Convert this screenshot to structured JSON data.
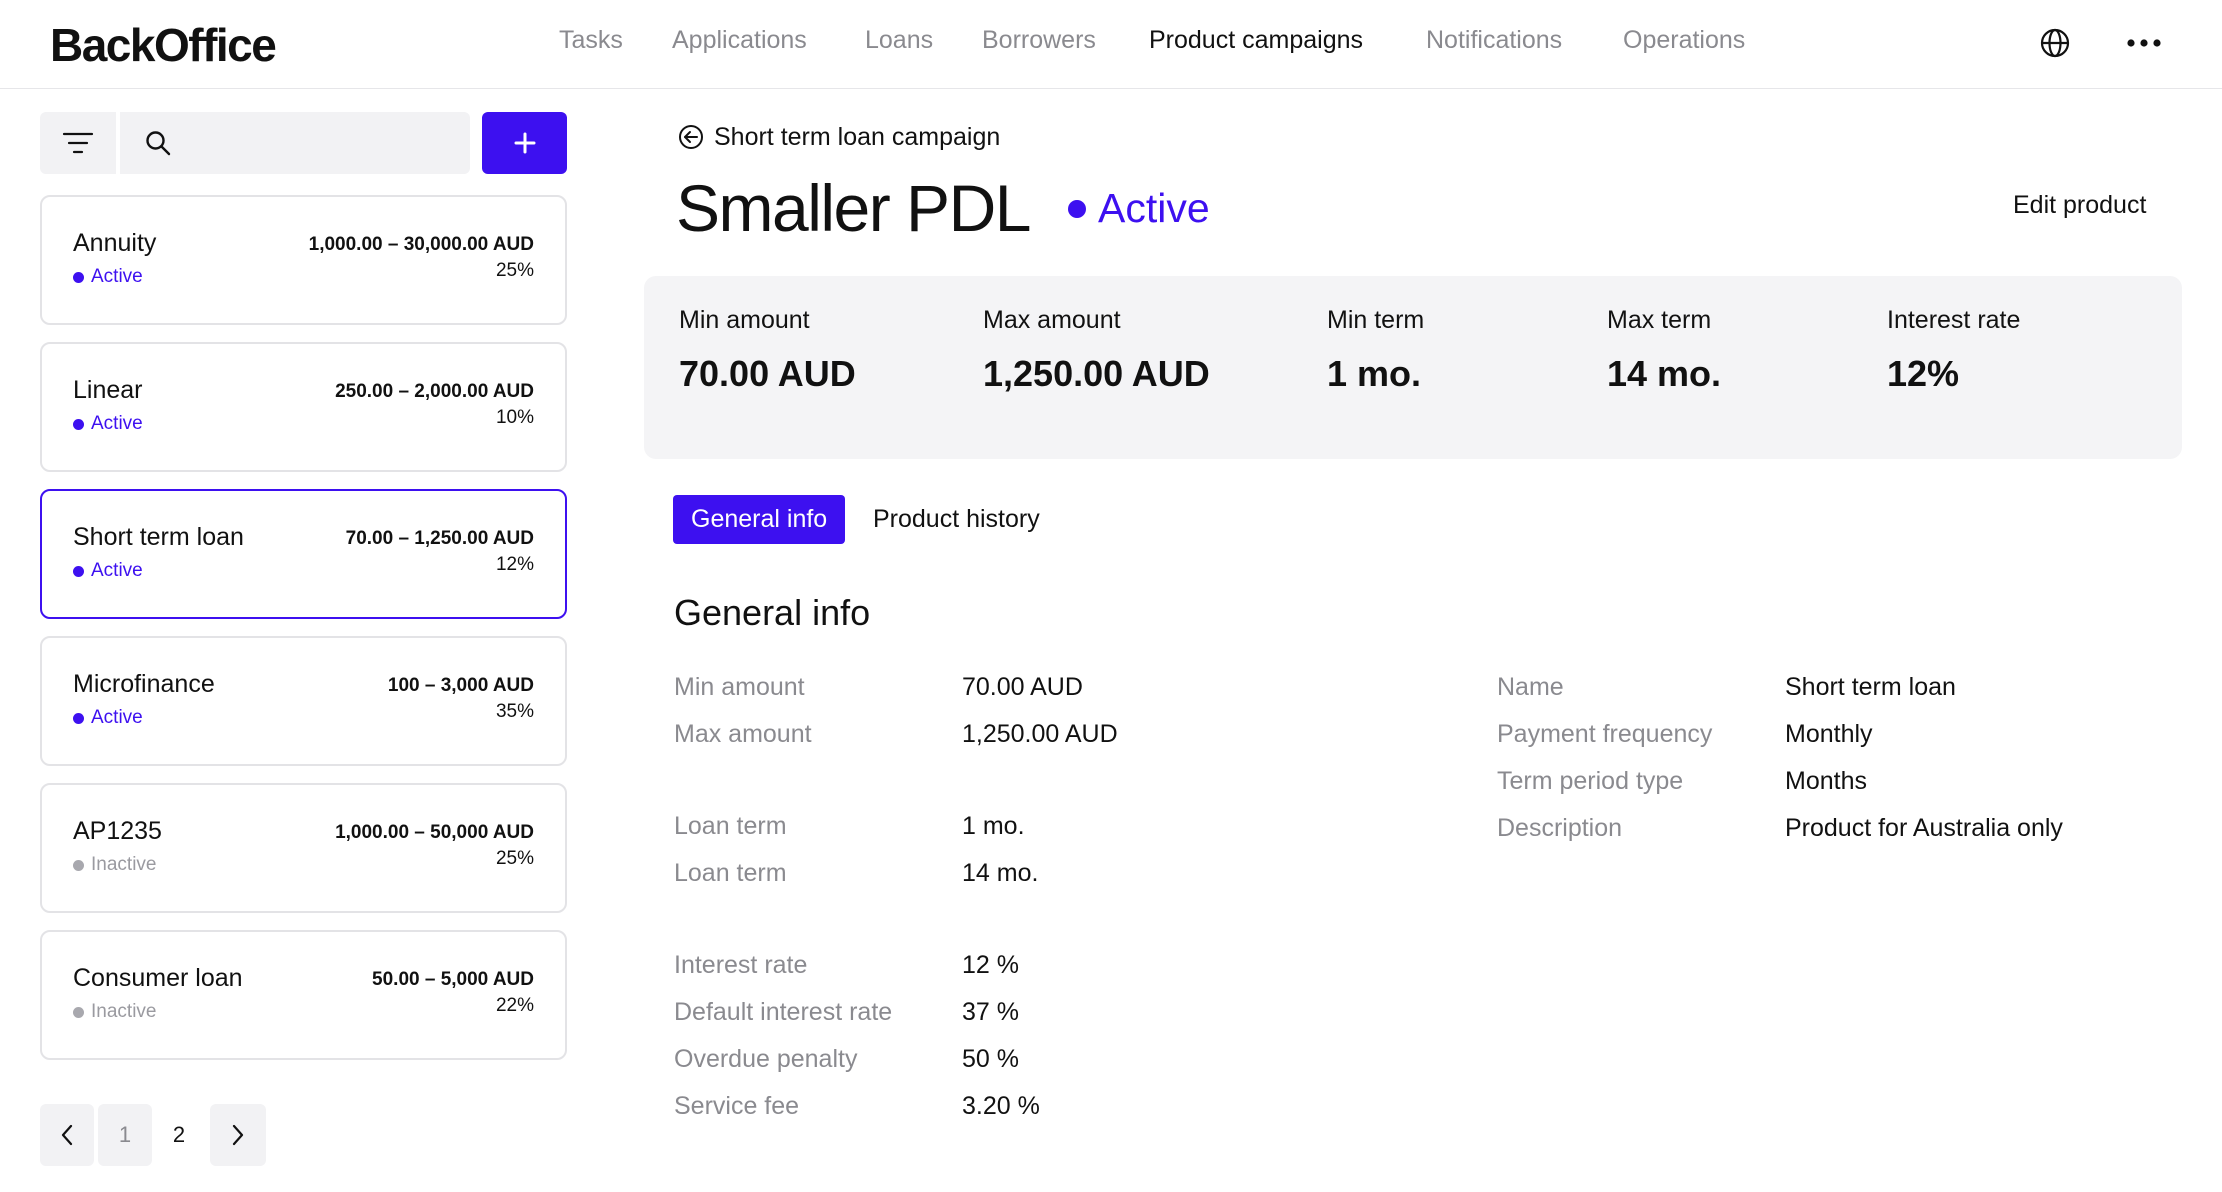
{
  "app": {
    "logo": "BackOffice"
  },
  "nav": {
    "items": [
      {
        "label": "Tasks"
      },
      {
        "label": "Applications"
      },
      {
        "label": "Loans"
      },
      {
        "label": "Borrowers"
      },
      {
        "label": "Product campaigns",
        "active": true
      },
      {
        "label": "Notifications"
      },
      {
        "label": "Operations"
      }
    ],
    "icons": [
      "globe-icon",
      "more-icon"
    ]
  },
  "sidebar": {
    "search": {
      "value": "",
      "placeholder": ""
    },
    "add_label": "+",
    "products": [
      {
        "name": "Annuity",
        "status": "Active",
        "range": "1,000.00 – 30,000.00 AUD",
        "rate": "25%"
      },
      {
        "name": "Linear",
        "status": "Active",
        "range": "250.00 – 2,000.00 AUD",
        "rate": "10%"
      },
      {
        "name": "Short term loan",
        "status": "Active",
        "range": "70.00 – 1,250.00 AUD",
        "rate": "12%",
        "selected": true
      },
      {
        "name": "Microfinance",
        "status": "Active",
        "range": "100 – 3,000 AUD",
        "rate": "35%"
      },
      {
        "name": "AP1235",
        "status": "Inactive",
        "range": "1,000.00 – 50,000 AUD",
        "rate": "25%"
      },
      {
        "name": "Consumer loan",
        "status": "Inactive",
        "range": "50.00 – 5,000 AUD",
        "rate": "22%"
      }
    ],
    "pagination": {
      "pages": [
        "1",
        "2"
      ],
      "current": "2"
    }
  },
  "colors": {
    "accent": "#3d10f0",
    "muted": "#8a8a8f",
    "panel": "#f4f4f6"
  },
  "main": {
    "back_label": "Short term loan campaign",
    "title": "Smaller PDL",
    "status": "Active",
    "edit_label": "Edit product",
    "stats": [
      {
        "label": "Min amount",
        "value": "70.00 AUD"
      },
      {
        "label": "Max amount",
        "value": "1,250.00 AUD"
      },
      {
        "label": "Min term",
        "value": "1 mo."
      },
      {
        "label": "Max term",
        "value": "14 mo."
      },
      {
        "label": "Interest rate",
        "value": "12%"
      }
    ],
    "tabs": [
      {
        "label": "General info",
        "active": true
      },
      {
        "label": "Product history"
      }
    ],
    "section_title": "General info",
    "left_info": [
      {
        "label": "Min amount",
        "value": "70.00 AUD"
      },
      {
        "label": "Max amount",
        "value": "1,250.00 AUD"
      },
      {
        "label": "Loan term",
        "value": "1 mo."
      },
      {
        "label": "Loan term",
        "value": "14 mo."
      },
      {
        "label": "Interest rate",
        "value": "12 %"
      },
      {
        "label": "Default interest rate",
        "value": "37 %"
      },
      {
        "label": "Overdue penalty",
        "value": "50 %"
      },
      {
        "label": "Service fee",
        "value": "3.20 %"
      }
    ],
    "right_info": [
      {
        "label": "Name",
        "value": "Short term loan"
      },
      {
        "label": "Payment frequency",
        "value": "Monthly"
      },
      {
        "label": "Term period type",
        "value": "Months"
      },
      {
        "label": "Description",
        "value": "Product for Australia only"
      }
    ]
  }
}
